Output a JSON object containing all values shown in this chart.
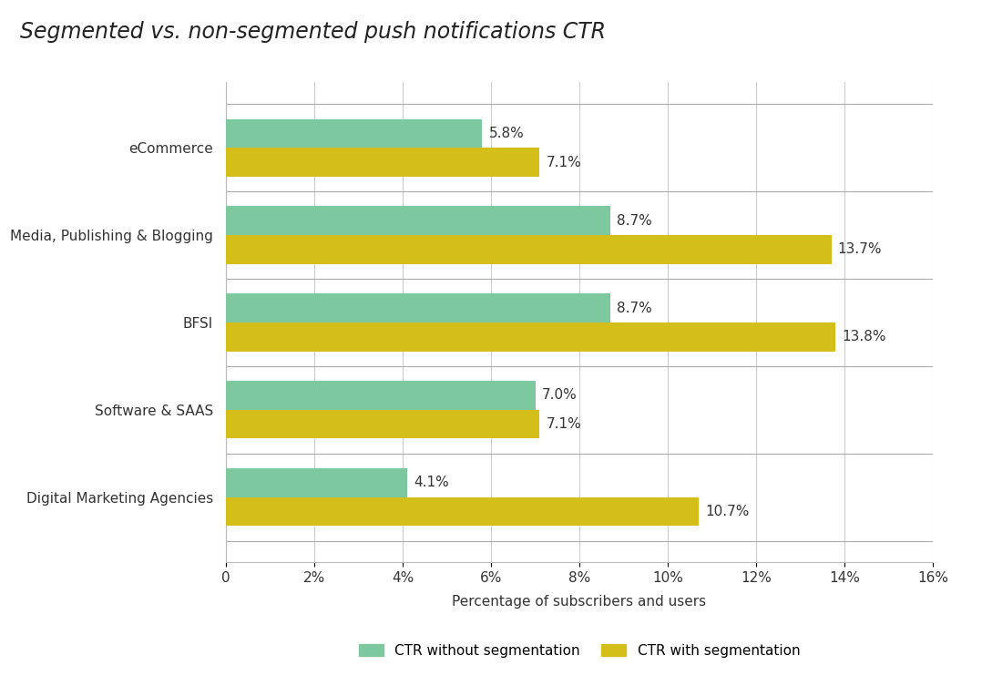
{
  "title": "Segmented vs. non-segmented push notifications CTR",
  "categories": [
    "eCommerce",
    "Media, Publishing & Blogging",
    "BFSI",
    "Software & SAAS",
    "Digital Marketing Agencies"
  ],
  "ctr_without_seg": [
    5.8,
    8.7,
    8.7,
    7.0,
    4.1
  ],
  "ctr_with_seg": [
    7.1,
    13.7,
    13.8,
    7.1,
    10.7
  ],
  "color_without": "#7ec8a0",
  "color_with": "#d4bf1a",
  "xlabel": "Percentage of subscribers and users",
  "xlim": [
    0,
    16
  ],
  "xticks": [
    0,
    2,
    4,
    6,
    8,
    10,
    12,
    14,
    16
  ],
  "xtick_labels": [
    "0",
    "2%",
    "4%",
    "6%",
    "8%",
    "10%",
    "12%",
    "14%",
    "16%"
  ],
  "legend_without": "CTR without segmentation",
  "legend_with": "CTR with segmentation",
  "bg_color": "#ffffff",
  "bar_height": 0.33,
  "title_fontsize": 17,
  "label_fontsize": 11,
  "tick_fontsize": 11,
  "annot_fontsize": 11,
  "separator_color": "#aaaaaa",
  "grid_color": "#cccccc"
}
